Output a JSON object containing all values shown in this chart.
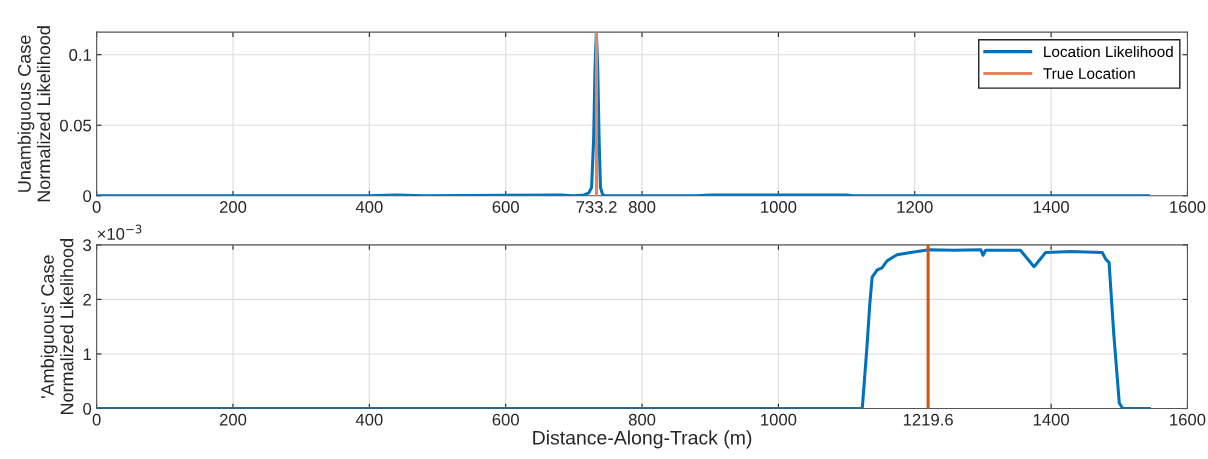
{
  "chart_data": [
    {
      "type": "line",
      "ylabel": "Unambiguous Case\nNormalized Likelihood",
      "xlim": [
        0,
        1600
      ],
      "xticks": [
        0,
        200,
        400,
        600,
        733.2,
        800,
        1000,
        1200,
        1400,
        1600
      ],
      "ylim": [
        0,
        0.116
      ],
      "yticks": [
        0,
        0.05,
        0.1
      ],
      "grid": true,
      "legend": "top right",
      "series": [
        {
          "name": "Location Likelihood",
          "color": "#0072bd",
          "x": [
            0,
            400,
            440,
            480,
            600,
            680,
            700,
            715,
            722,
            726,
            729,
            731,
            733,
            735,
            737,
            739,
            742,
            746,
            880,
            900,
            930,
            960,
            1000,
            1030,
            1050,
            1080,
            1100,
            1110,
            1543
          ],
          "values": [
            0,
            0,
            0.0006,
            0,
            0.0003,
            0.0006,
            0,
            0.0006,
            0.002,
            0.006,
            0.04,
            0.09,
            0.116,
            0.09,
            0.04,
            0.006,
            0.001,
            0,
            0,
            0.0006,
            0.0005,
            0.0006,
            0.0006,
            0.0006,
            0.0006,
            0.0006,
            0.0006,
            0,
            0
          ]
        },
        {
          "name": "True Location",
          "color": "#e8825a",
          "x": [
            733.2,
            733.2
          ],
          "values": [
            0,
            0.116
          ]
        }
      ]
    },
    {
      "type": "line",
      "ylabel": "'Ambiguous' Case\nNormalized Likelihood",
      "xlabel": "Distance-Along-Track (m)",
      "xlim": [
        0,
        1600
      ],
      "xticks": [
        0,
        200,
        400,
        600,
        800,
        1000,
        1219.6,
        1400,
        1600
      ],
      "ylim": [
        0,
        3
      ],
      "yticks": [
        0,
        1,
        2,
        3
      ],
      "grid": true,
      "annotations": [
        "×10$^{−3}$"
      ],
      "series": [
        {
          "color": "#0072bd",
          "x": [
            0,
            1123,
            1130,
            1134,
            1137.5,
            1145,
            1152,
            1159.6,
            1174,
            1194,
            1220.7,
            1257,
            1297,
            1300,
            1304,
            1355,
            1375,
            1392,
            1429,
            1475,
            1480,
            1485,
            1492,
            1500,
            1505,
            1544
          ],
          "values": [
            0,
            0,
            1.15,
            1.91,
            2.41,
            2.54,
            2.58,
            2.71,
            2.82,
            2.86,
            2.91,
            2.9,
            2.91,
            2.81,
            2.9,
            2.9,
            2.6,
            2.86,
            2.88,
            2.86,
            2.74,
            2.68,
            1.35,
            0.1,
            0,
            0
          ]
        },
        {
          "color": "#d95319",
          "x": [
            1219.6,
            1219.6
          ],
          "values": [
            0,
            3
          ]
        }
      ]
    }
  ]
}
